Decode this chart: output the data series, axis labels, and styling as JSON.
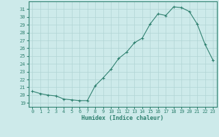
{
  "x": [
    0,
    1,
    2,
    3,
    4,
    5,
    6,
    7,
    8,
    9,
    10,
    11,
    12,
    13,
    14,
    15,
    16,
    17,
    18,
    19,
    20,
    21,
    22,
    23
  ],
  "y": [
    20.5,
    20.2,
    20.0,
    19.9,
    19.5,
    19.4,
    19.3,
    19.3,
    21.2,
    22.2,
    23.3,
    24.7,
    25.5,
    26.7,
    27.3,
    29.1,
    30.4,
    30.2,
    31.3,
    31.2,
    30.7,
    29.1,
    26.5,
    24.5
  ],
  "xlabel": "Humidex (Indice chaleur)",
  "xlim": [
    -0.5,
    23.5
  ],
  "ylim": [
    18.5,
    32.0
  ],
  "yticks": [
    19,
    20,
    21,
    22,
    23,
    24,
    25,
    26,
    27,
    28,
    29,
    30,
    31
  ],
  "xticks": [
    0,
    1,
    2,
    3,
    4,
    5,
    6,
    7,
    8,
    9,
    10,
    11,
    12,
    13,
    14,
    15,
    16,
    17,
    18,
    19,
    20,
    21,
    22,
    23
  ],
  "line_color": "#2d7f6e",
  "marker": "+",
  "bg_color": "#cdeaea",
  "grid_color": "#b0d4d4"
}
